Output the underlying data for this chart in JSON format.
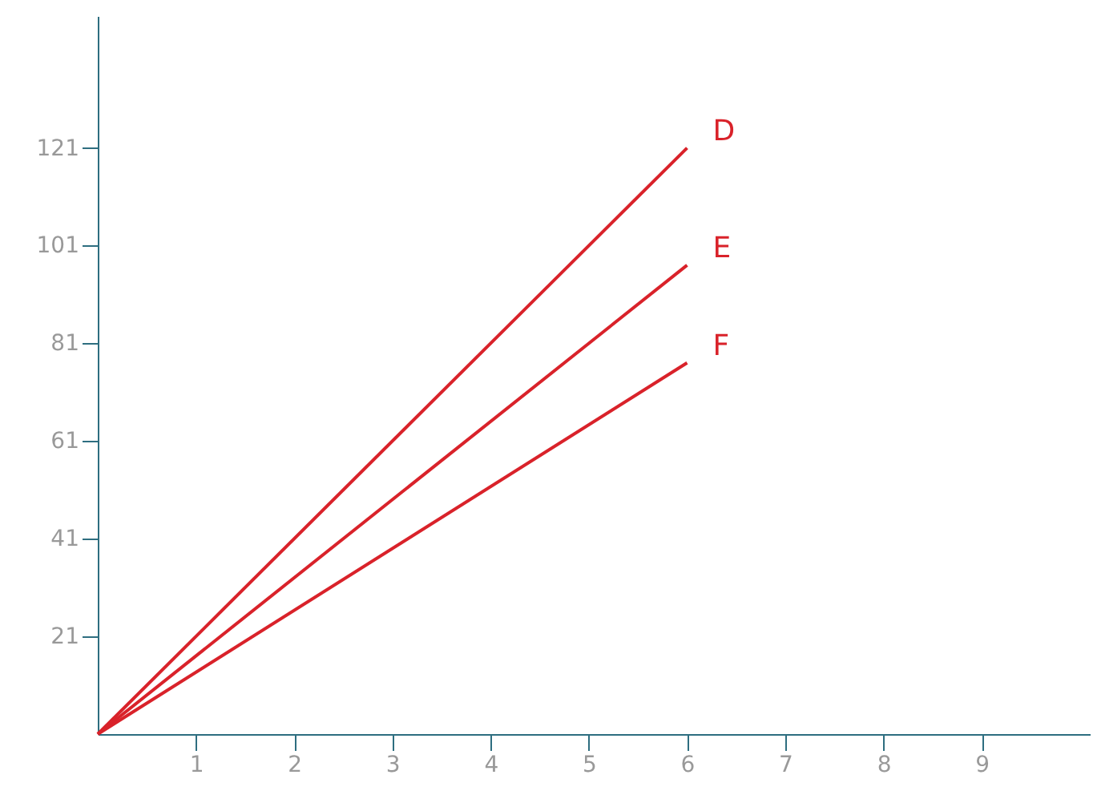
{
  "chart_data": {
    "type": "line",
    "x": [
      0,
      6
    ],
    "series": [
      {
        "name": "D",
        "color": "#d9222a",
        "values": [
          1,
          121
        ]
      },
      {
        "name": "E",
        "color": "#d9222a",
        "values": [
          1,
          97
        ]
      },
      {
        "name": "F",
        "color": "#d9222a",
        "values": [
          1,
          77
        ]
      }
    ],
    "xlim": [
      0,
      10.1
    ],
    "ylim": [
      1,
      148
    ],
    "xticks": [
      1,
      2,
      3,
      4,
      5,
      6,
      7,
      8,
      9
    ],
    "yticks": [
      21,
      41,
      61,
      81,
      101,
      121
    ],
    "grid": false,
    "legend": false,
    "marker": "none",
    "line_style": "solid"
  }
}
